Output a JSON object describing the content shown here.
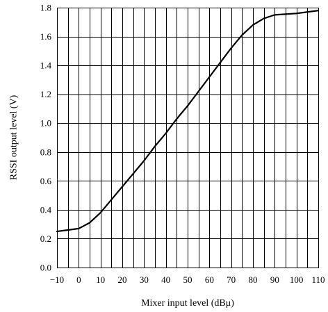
{
  "chart_data": {
    "type": "line",
    "title": "",
    "xlabel": "Mixer input level  (dBμ)",
    "ylabel": "RSSI output level  (V)",
    "xlim": [
      -10,
      110
    ],
    "ylim": [
      0.0,
      1.8
    ],
    "x_ticks": [
      -10,
      0,
      10,
      20,
      30,
      40,
      50,
      60,
      70,
      80,
      90,
      100,
      110
    ],
    "x_tick_labels": [
      "−10",
      "0",
      "10",
      "20",
      "30",
      "40",
      "50",
      "60",
      "70",
      "80",
      "90",
      "100",
      "110"
    ],
    "y_ticks": [
      0.0,
      0.2,
      0.4,
      0.6,
      0.8,
      1.0,
      1.2,
      1.4,
      1.6,
      1.8
    ],
    "y_tick_labels": [
      "0.0",
      "0.2",
      "0.4",
      "0.6",
      "0.8",
      "1.0",
      "1.2",
      "1.4",
      "1.6",
      "1.8"
    ],
    "grid": true,
    "grid_x_step": 5,
    "grid_y_step": 0.2,
    "line_color": "#000000",
    "series": [
      {
        "x": [
          -10,
          -5,
          0,
          5,
          10,
          15,
          20,
          25,
          30,
          35,
          40,
          45,
          50,
          55,
          60,
          65,
          70,
          75,
          80,
          85,
          90,
          95,
          100,
          105,
          110
        ],
        "y": [
          0.25,
          0.26,
          0.27,
          0.31,
          0.38,
          0.47,
          0.56,
          0.65,
          0.74,
          0.84,
          0.93,
          1.03,
          1.12,
          1.22,
          1.32,
          1.42,
          1.52,
          1.61,
          1.68,
          1.725,
          1.75,
          1.755,
          1.76,
          1.77,
          1.78
        ]
      }
    ]
  }
}
